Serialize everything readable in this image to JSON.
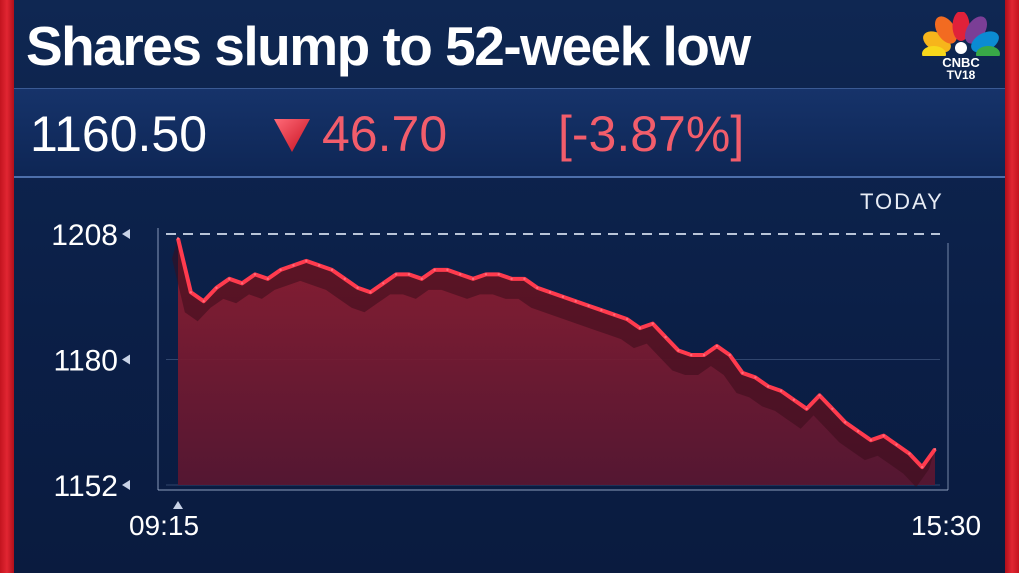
{
  "headline": "Shares slump to 52-week low",
  "logo": {
    "name": "CNBC",
    "sub": "TV18"
  },
  "quote": {
    "price": "1160.50",
    "change": "46.70",
    "change_pct": "[-3.87%]",
    "direction": "down"
  },
  "period_label": "TODAY",
  "colors": {
    "background": "#0b1e45",
    "accent_red": "#e12632",
    "down_red": "#f25d6b",
    "line": "#ff3b4e"
  },
  "chart_data": {
    "type": "area",
    "title": "",
    "xlabel": "",
    "ylabel": "",
    "x_start": "09:15",
    "x_end": "15:30",
    "ylim": [
      1152,
      1208
    ],
    "yticks": [
      "1208",
      "1180",
      "1152"
    ],
    "xticks": [
      "09:15",
      "15:30"
    ],
    "reference_line": 1208,
    "grid": true,
    "series": [
      {
        "values": [
          1207,
          1195,
          1193,
          1196,
          1198,
          1197,
          1199,
          1198,
          1200,
          1201,
          1202,
          1201,
          1200,
          1198,
          1196,
          1195,
          1197,
          1199,
          1199,
          1198,
          1200,
          1200,
          1199,
          1198,
          1199,
          1199,
          1198,
          1198,
          1196,
          1195,
          1194,
          1193,
          1192,
          1191,
          1190,
          1189,
          1187,
          1188,
          1185,
          1182,
          1181,
          1181,
          1183,
          1181,
          1177,
          1176,
          1174,
          1173,
          1171,
          1169,
          1172,
          1169,
          1166,
          1164,
          1162,
          1163,
          1161,
          1159,
          1156,
          1160
        ]
      }
    ]
  }
}
